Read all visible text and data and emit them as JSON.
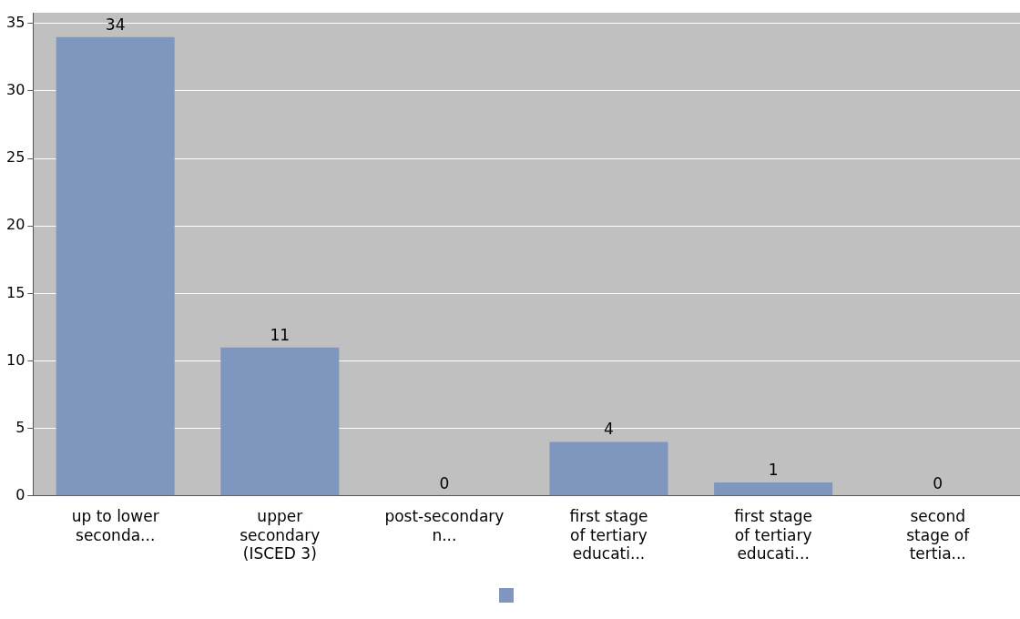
{
  "chart_data": {
    "type": "bar",
    "categories": [
      "up to lower seconda...",
      "upper secondary (ISCED 3)",
      "post-secondary n...",
      "first stage of tertiary educati...",
      "first stage of tertiary educati...",
      "second stage of tertia..."
    ],
    "values": [
      34,
      11,
      0,
      4,
      1,
      0
    ],
    "color": "#7f97bf",
    "ylim": [
      0,
      35.8
    ],
    "yticks": [
      0,
      5,
      10,
      15,
      20,
      25,
      30,
      35
    ],
    "grid": "y",
    "data_labels": true
  }
}
